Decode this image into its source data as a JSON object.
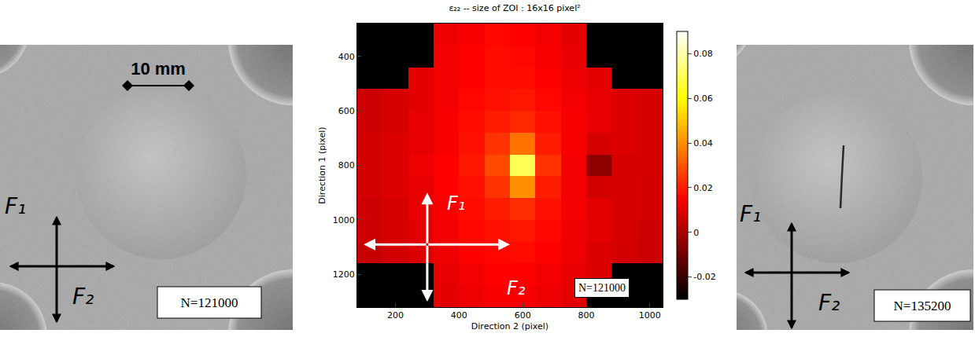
{
  "left_photo": {
    "scale_bar": "10 mm",
    "force_labels": [
      "F₁",
      "F₂"
    ],
    "cycles": "N=121000"
  },
  "chart_data": {
    "type": "heatmap",
    "title": "ε₂₂ -- size of ZOI : 16x16 pixel²",
    "x_label": "Direction 2 (pixel)",
    "y_label": "Direction 1 (pixel)",
    "x": [
      120,
      200,
      280,
      360,
      440,
      520,
      600,
      680,
      760,
      840,
      920,
      1000
    ],
    "y": [
      320,
      400,
      480,
      560,
      640,
      720,
      800,
      880,
      960,
      1040,
      1120,
      1200,
      1280
    ],
    "cells": [
      [
        null,
        null,
        null,
        0.012,
        0.014,
        0.016,
        0.015,
        0.013,
        0.01,
        null,
        null,
        null
      ],
      [
        null,
        null,
        null,
        0.013,
        0.015,
        0.017,
        0.016,
        0.014,
        0.011,
        null,
        null,
        null
      ],
      [
        null,
        null,
        0.01,
        0.013,
        0.015,
        0.017,
        0.017,
        0.015,
        0.012,
        0.01,
        null,
        null
      ],
      [
        0.006,
        0.008,
        0.01,
        0.013,
        0.016,
        0.018,
        0.019,
        0.016,
        0.013,
        0.011,
        0.009,
        0.008
      ],
      [
        0.006,
        0.008,
        0.011,
        0.014,
        0.017,
        0.02,
        0.022,
        0.018,
        0.014,
        0.011,
        0.009,
        0.008
      ],
      [
        0.007,
        0.009,
        0.011,
        0.014,
        0.018,
        0.024,
        0.035,
        0.02,
        0.014,
        0.008,
        0.009,
        0.008
      ],
      [
        0.007,
        0.009,
        0.012,
        0.015,
        0.019,
        0.028,
        0.07,
        0.024,
        0.013,
        -0.005,
        0.008,
        0.008
      ],
      [
        0.007,
        0.009,
        0.011,
        0.015,
        0.018,
        0.024,
        0.04,
        0.02,
        0.013,
        0.007,
        0.008,
        0.007
      ],
      [
        0.006,
        0.008,
        0.011,
        0.014,
        0.017,
        0.02,
        0.023,
        0.018,
        0.013,
        0.01,
        0.008,
        0.007
      ],
      [
        0.006,
        0.008,
        0.01,
        0.013,
        0.016,
        0.018,
        0.019,
        0.016,
        0.012,
        0.01,
        0.008,
        0.006
      ],
      [
        0.005,
        0.007,
        0.009,
        0.012,
        0.015,
        0.016,
        0.017,
        0.015,
        0.012,
        0.009,
        0.007,
        0.006
      ],
      [
        null,
        null,
        null,
        0.011,
        0.013,
        0.015,
        0.015,
        0.013,
        0.011,
        0.009,
        null,
        null
      ],
      [
        null,
        null,
        null,
        0.01,
        0.012,
        0.014,
        0.014,
        0.012,
        0.01,
        null,
        null,
        null
      ]
    ],
    "xlim": [
      80,
      1040
    ],
    "ylim": [
      1320,
      280
    ],
    "xticks": [
      200,
      400,
      600,
      800,
      1000
    ],
    "yticks": [
      400,
      600,
      800,
      1000,
      1200
    ],
    "colorbar_range": [
      -0.03,
      0.09
    ],
    "colorbar_ticks": [
      -0.02,
      0,
      0.02,
      0.04,
      0.06,
      0.08
    ],
    "force_labels": [
      "F₁",
      "F₂"
    ],
    "cycles": "N=121000"
  },
  "right_photo": {
    "force_labels": [
      "F₁",
      "F₂"
    ],
    "cycles": "N=135200",
    "crack": true
  }
}
